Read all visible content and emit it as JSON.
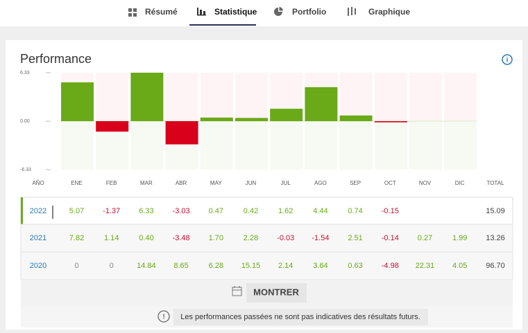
{
  "tabs": [
    "Résumé",
    "Statistique",
    "Portfolio",
    "Graphique"
  ],
  "active_tab": 1,
  "chart_data": {
    "type": "bar",
    "title": "Performance",
    "categories": [
      "ENE",
      "FEB",
      "MAR",
      "ABR",
      "MAY",
      "JUN",
      "JUL",
      "AGO",
      "SEP",
      "OCT",
      "NOV",
      "DIC"
    ],
    "values": [
      5.07,
      -1.37,
      6.33,
      -3.03,
      0.47,
      0.42,
      1.62,
      4.44,
      0.74,
      -0.15,
      null,
      null
    ],
    "colors": {
      "positive": "#6aaa19",
      "negative": "#d9001b"
    },
    "ylim": [
      -6.33,
      6.33
    ],
    "yticks": [
      6.33,
      {
        "value": 0,
        "label": "0.00"
      },
      -6.33
    ]
  },
  "table": {
    "columns": [
      "AÑO",
      "TOTAL"
    ],
    "rows": [
      [
        "2022",
        "5.07",
        "-1.37",
        "6.33",
        "-3.03",
        "0.47",
        "0.42",
        "1.62",
        "4.44",
        "0.74",
        "-0.15",
        null,
        null,
        "15.09"
      ],
      [
        "2021",
        "7.82",
        "1.14",
        "0.40",
        "-3.48",
        "1.70",
        "2.28",
        "-0.03",
        "-1.54",
        "2.51",
        "-0.14",
        "0.27",
        "1.99",
        "13.26"
      ],
      [
        "2020",
        "0",
        "0",
        "14.84",
        "8.65",
        "6.28",
        "15.15",
        "2.14",
        "3.64",
        "0.63",
        "-4.98",
        "22.31",
        "4.05",
        "96.70"
      ]
    ]
  },
  "button": "MONTRER",
  "disclaimer": "Les performances passées ne sont pas indicatives des résultats futurs."
}
